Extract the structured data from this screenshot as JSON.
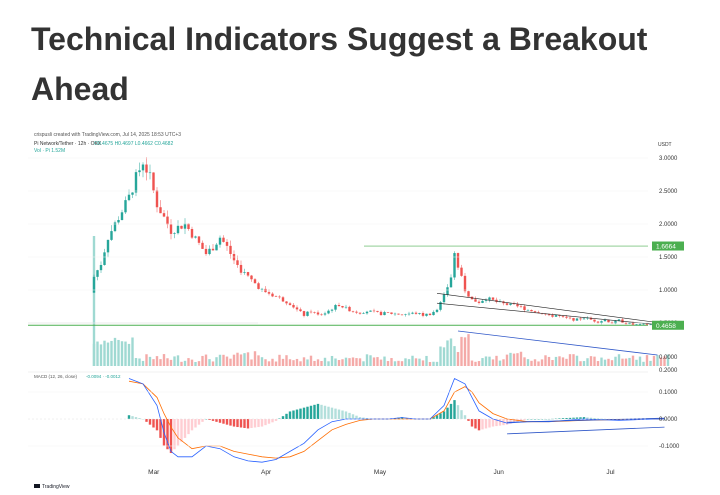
{
  "article": {
    "headline_line1": "Technical Indicators Suggest a Breakout",
    "headline_line2": "Ahead"
  },
  "chart_data": {
    "type": "candlestick",
    "credit": "crispusli created with TradingView.com, Jul 14, 2025 18:53 UTC+3",
    "symbol_line": "Pi Network/Tether · 12h · OKX",
    "ohlc_line": "O0.4675 H0.4697 L0.4662 C0.4682",
    "volume_line": "Vol · Pi 1.52M",
    "quote_currency": "USDT",
    "brand": "TradingView",
    "colors": {
      "up": "#26a69a",
      "down": "#ef5350",
      "macd": "#2962ff",
      "signal": "#ff6d00",
      "trendline": "#2f57c8"
    },
    "price_axis": {
      "ticks": [
        3.0,
        2.5,
        2.0,
        1.5,
        1.0,
        0.5
      ],
      "tick_labels": [
        "3.0000",
        "2.5000",
        "2.0000",
        "1.5000",
        "1.0000",
        "0.5000"
      ],
      "range": [
        0.0,
        3.2
      ]
    },
    "volume_axis": {
      "tick_labels": [
        "0.0000",
        "0.2000"
      ]
    },
    "macd_axis": {
      "ticks": [
        0.1,
        0.0,
        -0.1
      ],
      "tick_labels": [
        "0.1000",
        "0.0000",
        "-0.1000"
      ],
      "range": [
        -0.17,
        0.17
      ]
    },
    "macd_label": "MACD (12, 26, close)",
    "macd_values": "-0.0094 · -0.0012",
    "x_labels": [
      "Mar",
      "Apr",
      "May",
      "Jun",
      "Jul"
    ],
    "levels": [
      {
        "value": 1.6664,
        "label": "1.6664",
        "color": "#4caf50"
      },
      {
        "value": 0.4658,
        "label": "0.4658",
        "color": "#4caf50"
      }
    ],
    "price_series": [
      [
        0,
        1.2
      ],
      [
        2,
        1.4
      ],
      [
        4,
        1.8
      ],
      [
        6,
        2.0
      ],
      [
        8,
        2.2
      ],
      [
        10,
        2.4
      ],
      [
        12,
        2.7
      ],
      [
        14,
        2.95
      ],
      [
        16,
        2.7
      ],
      [
        18,
        2.3
      ],
      [
        20,
        2.1
      ],
      [
        22,
        1.9
      ],
      [
        24,
        1.95
      ],
      [
        26,
        2.0
      ],
      [
        28,
        1.85
      ],
      [
        30,
        1.7
      ],
      [
        32,
        1.55
      ],
      [
        34,
        1.65
      ],
      [
        36,
        1.8
      ],
      [
        38,
        1.65
      ],
      [
        40,
        1.45
      ],
      [
        42,
        1.3
      ],
      [
        44,
        1.2
      ],
      [
        46,
        1.1
      ],
      [
        48,
        1.0
      ],
      [
        50,
        0.95
      ],
      [
        52,
        0.9
      ],
      [
        54,
        0.85
      ],
      [
        56,
        0.8
      ],
      [
        58,
        0.7
      ],
      [
        60,
        0.62
      ],
      [
        62,
        0.68
      ],
      [
        64,
        0.62
      ],
      [
        66,
        0.65
      ],
      [
        68,
        0.72
      ],
      [
        70,
        0.78
      ],
      [
        72,
        0.72
      ],
      [
        74,
        0.68
      ],
      [
        76,
        0.66
      ],
      [
        78,
        0.68
      ],
      [
        80,
        0.66
      ],
      [
        82,
        0.64
      ],
      [
        84,
        0.65
      ],
      [
        86,
        0.64
      ],
      [
        88,
        0.63
      ],
      [
        90,
        0.64
      ],
      [
        92,
        0.65
      ],
      [
        94,
        0.62
      ],
      [
        96,
        0.64
      ],
      [
        98,
        0.7
      ],
      [
        100,
        0.9
      ],
      [
        102,
        1.2
      ],
      [
        103,
        1.55
      ],
      [
        104,
        1.35
      ],
      [
        106,
        1.0
      ],
      [
        108,
        0.85
      ],
      [
        110,
        0.82
      ],
      [
        112,
        0.88
      ],
      [
        114,
        0.84
      ],
      [
        116,
        0.8
      ],
      [
        118,
        0.78
      ],
      [
        120,
        0.76
      ],
      [
        122,
        0.74
      ],
      [
        124,
        0.7
      ],
      [
        126,
        0.68
      ],
      [
        128,
        0.66
      ],
      [
        130,
        0.6
      ],
      [
        132,
        0.62
      ],
      [
        134,
        0.58
      ],
      [
        136,
        0.56
      ],
      [
        138,
        0.55
      ],
      [
        140,
        0.58
      ],
      [
        142,
        0.55
      ],
      [
        144,
        0.52
      ],
      [
        146,
        0.55
      ],
      [
        148,
        0.5
      ],
      [
        150,
        0.54
      ],
      [
        152,
        0.5
      ],
      [
        154,
        0.48
      ],
      [
        156,
        0.47
      ],
      [
        158,
        0.48
      ],
      [
        160,
        0.47
      ],
      [
        162,
        0.47
      ]
    ],
    "macd_series": [
      [
        10,
        0.15
      ],
      [
        14,
        0.13
      ],
      [
        18,
        0.05
      ],
      [
        20,
        -0.05
      ],
      [
        22,
        -0.12
      ],
      [
        24,
        -0.14
      ],
      [
        28,
        -0.14
      ],
      [
        32,
        -0.1
      ],
      [
        36,
        -0.11
      ],
      [
        40,
        -0.14
      ],
      [
        44,
        -0.155
      ],
      [
        48,
        -0.16
      ],
      [
        52,
        -0.15
      ],
      [
        56,
        -0.12
      ],
      [
        60,
        -0.09
      ],
      [
        64,
        -0.04
      ],
      [
        68,
        -0.01
      ],
      [
        72,
        0.0
      ],
      [
        76,
        0.0
      ],
      [
        80,
        0.0
      ],
      [
        84,
        0.0
      ],
      [
        88,
        0.005
      ],
      [
        92,
        0.0
      ],
      [
        96,
        0.0
      ],
      [
        100,
        0.05
      ],
      [
        103,
        0.15
      ],
      [
        106,
        0.13
      ],
      [
        108,
        0.08
      ],
      [
        110,
        0.03
      ],
      [
        114,
        0.0
      ],
      [
        118,
        -0.015
      ],
      [
        124,
        -0.01
      ],
      [
        130,
        -0.01
      ],
      [
        140,
        0.0
      ],
      [
        150,
        -0.005
      ],
      [
        160,
        0.0
      ],
      [
        163,
        0.0
      ]
    ],
    "signal_series": [
      [
        10,
        0.14
      ],
      [
        14,
        0.13
      ],
      [
        18,
        0.08
      ],
      [
        20,
        0.02
      ],
      [
        22,
        -0.03
      ],
      [
        24,
        -0.07
      ],
      [
        28,
        -0.11
      ],
      [
        32,
        -0.1
      ],
      [
        36,
        -0.1
      ],
      [
        40,
        -0.12
      ],
      [
        44,
        -0.13
      ],
      [
        48,
        -0.14
      ],
      [
        52,
        -0.145
      ],
      [
        56,
        -0.14
      ],
      [
        60,
        -0.12
      ],
      [
        64,
        -0.08
      ],
      [
        68,
        -0.04
      ],
      [
        72,
        -0.02
      ],
      [
        76,
        -0.005
      ],
      [
        80,
        0.0
      ],
      [
        84,
        0.0
      ],
      [
        88,
        0.0
      ],
      [
        92,
        0.0
      ],
      [
        96,
        0.0
      ],
      [
        100,
        0.03
      ],
      [
        103,
        0.1
      ],
      [
        106,
        0.12
      ],
      [
        108,
        0.1
      ],
      [
        110,
        0.06
      ],
      [
        114,
        0.02
      ],
      [
        118,
        0.0
      ],
      [
        124,
        -0.01
      ],
      [
        130,
        -0.01
      ],
      [
        140,
        -0.005
      ],
      [
        150,
        -0.002
      ],
      [
        160,
        0.0
      ],
      [
        163,
        0.0
      ]
    ]
  }
}
